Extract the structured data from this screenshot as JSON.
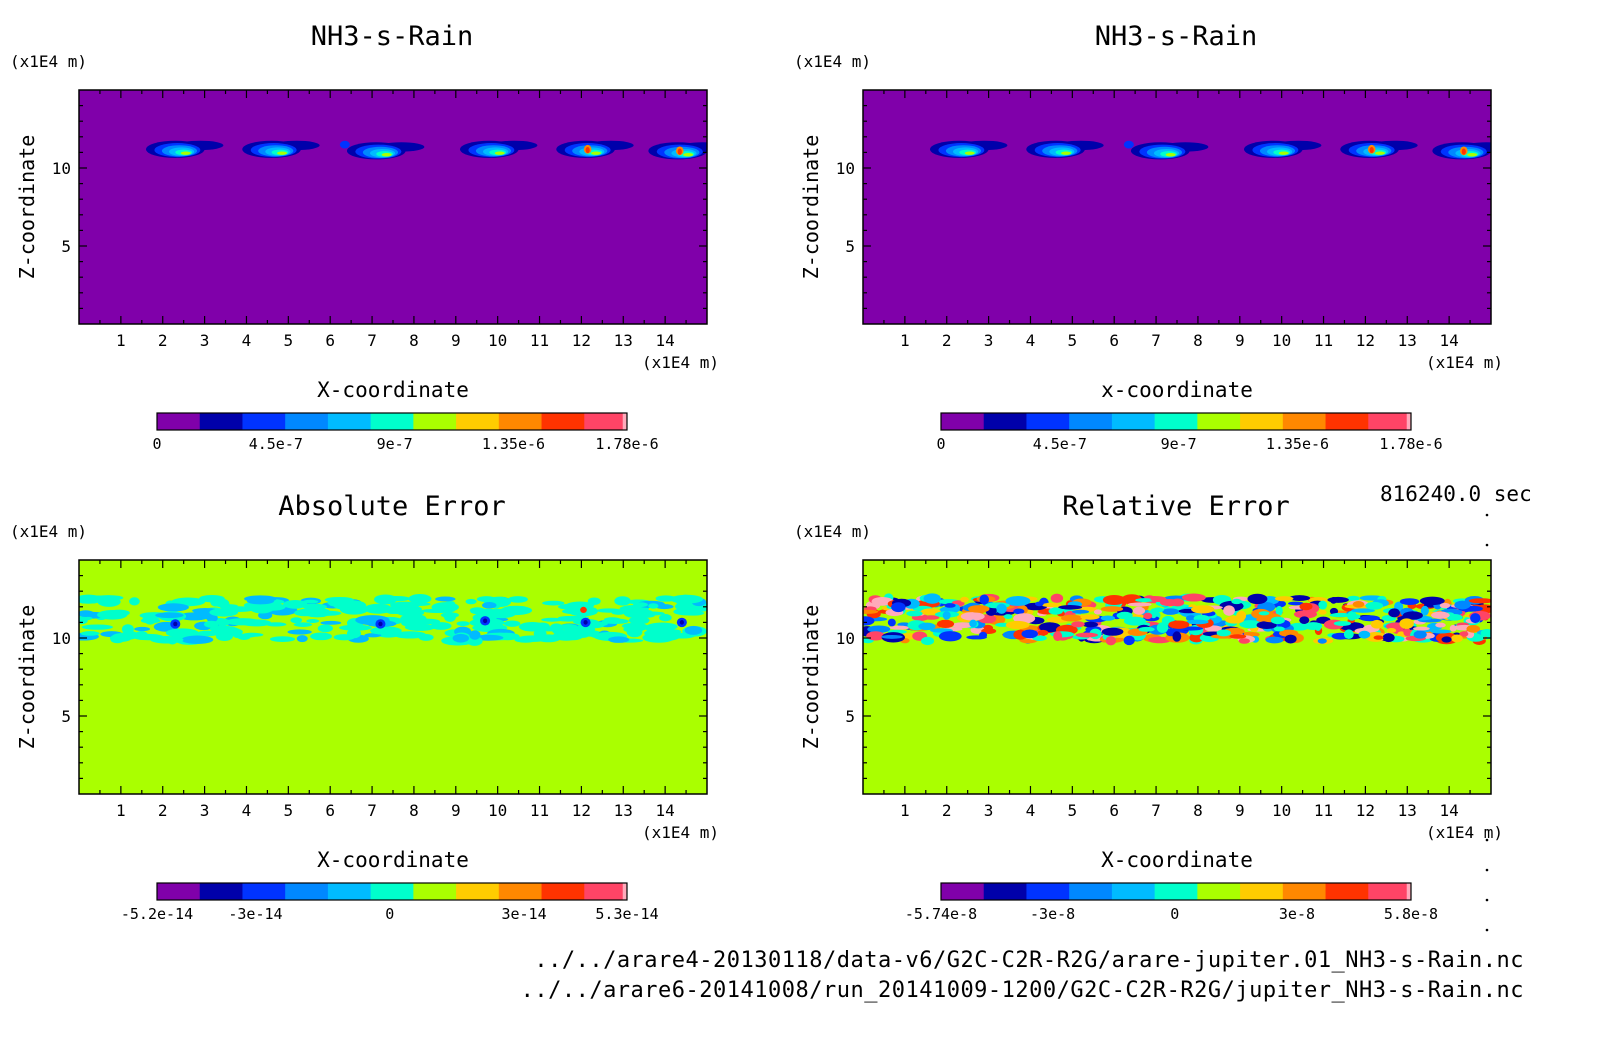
{
  "figure": {
    "timestamp": "816240.0 sec",
    "file_a": "../../arare4-20130118/data-v6/G2C-C2R-R2G/arare-jupiter.01_NH3-s-Rain.nc",
    "file_b": "../../arare6-20141008/run_20141009-1200/G2C-C2R-R2G/jupiter_NH3-s-Rain.nc"
  },
  "chart_data": [
    {
      "type": "heatmap",
      "title": "NH3-s-Rain",
      "xlabel": "X-coordinate",
      "ylabel": "Z-coordinate",
      "x_unit": "(x1E4 m)",
      "y_unit": "(x1E4 m)",
      "xlim": [
        0,
        15
      ],
      "ylim": [
        0,
        15
      ],
      "x_ticks": [
        "1",
        "2",
        "3",
        "4",
        "5",
        "6",
        "7",
        "8",
        "9",
        "10",
        "11",
        "12",
        "13",
        "14"
      ],
      "y_ticks": [
        "5",
        "10"
      ],
      "background": "#8000aa",
      "field": "blobs",
      "cells": [
        {
          "x": 2.3,
          "z": 11.2,
          "peak": 1.1e-06
        },
        {
          "x": 4.6,
          "z": 11.2,
          "peak": 1e-06
        },
        {
          "x": 7.1,
          "z": 11.1,
          "peak": 9.5e-07
        },
        {
          "x": 9.8,
          "z": 11.2,
          "peak": 1.05e-06
        },
        {
          "x": 12.1,
          "z": 11.2,
          "peak": 1.6e-06
        },
        {
          "x": 14.3,
          "z": 11.1,
          "peak": 1.5e-06
        }
      ],
      "colorbar": {
        "labels": [
          "0",
          "4.5e-7",
          "9e-7",
          "1.35e-6",
          "1.78e-6"
        ],
        "range": [
          0,
          1.78e-06
        ]
      }
    },
    {
      "type": "heatmap",
      "title": "NH3-s-Rain",
      "xlabel": "x-coordinate",
      "ylabel": "Z-coordinate",
      "x_unit": "(x1E4 m)",
      "y_unit": "(x1E4 m)",
      "xlim": [
        0,
        15
      ],
      "ylim": [
        0,
        15
      ],
      "x_ticks": [
        "1",
        "2",
        "3",
        "4",
        "5",
        "6",
        "7",
        "8",
        "9",
        "10",
        "11",
        "12",
        "13",
        "14"
      ],
      "y_ticks": [
        "5",
        "10"
      ],
      "background": "#8000aa",
      "field": "blobs",
      "cells": [
        {
          "x": 2.3,
          "z": 11.2,
          "peak": 1.1e-06
        },
        {
          "x": 4.6,
          "z": 11.2,
          "peak": 1e-06
        },
        {
          "x": 7.1,
          "z": 11.1,
          "peak": 9.5e-07
        },
        {
          "x": 9.8,
          "z": 11.2,
          "peak": 1.05e-06
        },
        {
          "x": 12.1,
          "z": 11.2,
          "peak": 1.6e-06
        },
        {
          "x": 14.3,
          "z": 11.1,
          "peak": 1.5e-06
        }
      ],
      "colorbar": {
        "labels": [
          "0",
          "4.5e-7",
          "9e-7",
          "1.35e-6",
          "1.78e-6"
        ],
        "range": [
          0,
          1.78e-06
        ]
      }
    },
    {
      "type": "heatmap",
      "title": "Absolute Error",
      "xlabel": "X-coordinate",
      "ylabel": "Z-coordinate",
      "x_unit": "(x1E4 m)",
      "y_unit": "(x1E4 m)",
      "xlim": [
        0,
        15
      ],
      "ylim": [
        0,
        15
      ],
      "x_ticks": [
        "1",
        "2",
        "3",
        "4",
        "5",
        "6",
        "7",
        "8",
        "9",
        "10",
        "11",
        "12",
        "13",
        "14"
      ],
      "y_ticks": [
        "5",
        "10"
      ],
      "background": "#aaff00",
      "field": "noise-light",
      "band_z": [
        9.8,
        12.6
      ],
      "colorbar": {
        "labels": [
          "-5.2e-14",
          "-3e-14",
          "0",
          "3e-14",
          "5.3e-14"
        ],
        "range": [
          -5.2e-14,
          5.3e-14
        ]
      }
    },
    {
      "type": "heatmap",
      "title": "Relative Error",
      "xlabel": "X-coordinate",
      "ylabel": "Z-coordinate",
      "x_unit": "(x1E4 m)",
      "y_unit": "(x1E4 m)",
      "xlim": [
        0,
        15
      ],
      "ylim": [
        0,
        15
      ],
      "x_ticks": [
        "1",
        "2",
        "3",
        "4",
        "5",
        "6",
        "7",
        "8",
        "9",
        "10",
        "11",
        "12",
        "13",
        "14"
      ],
      "y_ticks": [
        "5",
        "10"
      ],
      "background": "#aaff00",
      "field": "noise-strong",
      "band_z": [
        9.8,
        12.6
      ],
      "colorbar": {
        "labels": [
          "-5.74e-8",
          "-3e-8",
          "0",
          "3e-8",
          "5.8e-8"
        ],
        "range": [
          -5.74e-08,
          5.8e-08
        ]
      }
    }
  ],
  "colormap": [
    "#8000aa",
    "#0000aa",
    "#0033ff",
    "#0088ff",
    "#00bbff",
    "#00ffcc",
    "#aaff00",
    "#ffcc00",
    "#ff8800",
    "#ff3300",
    "#ff4466",
    "#ffaabb"
  ]
}
